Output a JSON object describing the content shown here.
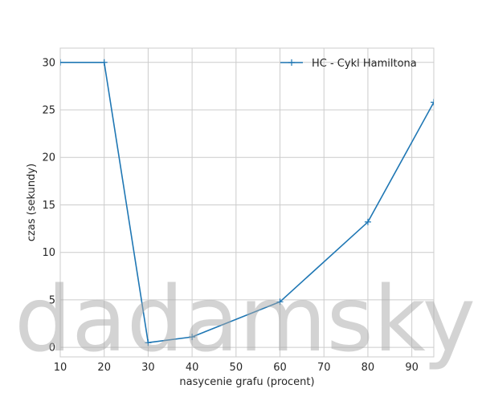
{
  "chart_data": {
    "type": "line",
    "title": "",
    "xlabel": "nasycenie grafu (procent)",
    "ylabel": "czas (sekundy)",
    "xlim": [
      10,
      95
    ],
    "ylim": [
      -1,
      31.5
    ],
    "x_ticks": [
      10,
      20,
      30,
      40,
      50,
      60,
      70,
      80,
      90
    ],
    "y_ticks": [
      0,
      5,
      10,
      15,
      20,
      25,
      30
    ],
    "grid": true,
    "legend_position": "top-right",
    "series": [
      {
        "name": "HC - Cykl Hamiltona",
        "color": "#1f77b4",
        "marker": "plus",
        "x": [
          10,
          20,
          30,
          40,
          60,
          80,
          95
        ],
        "y": [
          30,
          30,
          0.5,
          1.1,
          4.8,
          13.2,
          25.8
        ]
      }
    ]
  },
  "watermark": {
    "text": "dadamsky"
  }
}
